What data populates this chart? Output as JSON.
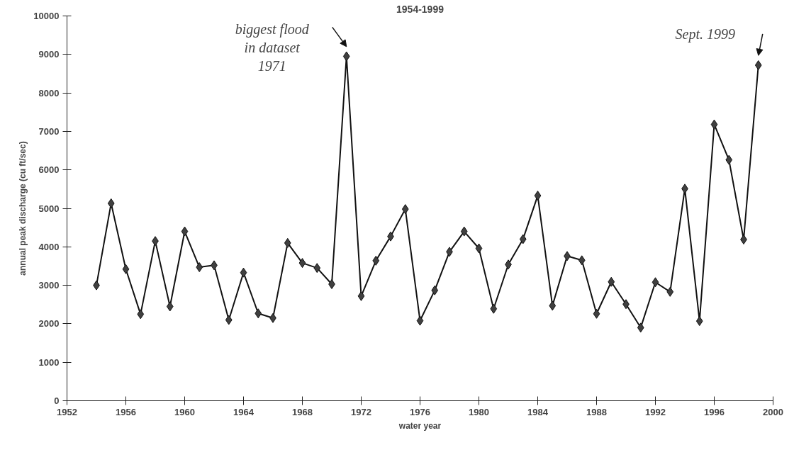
{
  "chart_data": {
    "type": "line",
    "title": "1954-1999",
    "xlabel": "water year",
    "ylabel": "annual peak discharge (cu ft/sec)",
    "x": [
      1954,
      1955,
      1956,
      1957,
      1958,
      1959,
      1960,
      1961,
      1962,
      1963,
      1964,
      1965,
      1966,
      1967,
      1968,
      1969,
      1970,
      1971,
      1972,
      1973,
      1974,
      1975,
      1976,
      1977,
      1978,
      1979,
      1980,
      1981,
      1982,
      1983,
      1984,
      1985,
      1986,
      1987,
      1988,
      1989,
      1990,
      1991,
      1992,
      1993,
      1994,
      1995,
      1996,
      1997,
      1998,
      1999
    ],
    "series": [
      {
        "color": "#404040",
        "values": [
          3000,
          5130,
          3420,
          2250,
          4150,
          2450,
          4400,
          3470,
          3520,
          2100,
          3330,
          2270,
          2150,
          4100,
          3580,
          3450,
          3030,
          8950,
          2720,
          3640,
          4270,
          4980,
          2080,
          2870,
          3870,
          4400,
          3960,
          2390,
          3540,
          4200,
          5330,
          2470,
          3760,
          3650,
          2260,
          3090,
          2510,
          1900,
          3080,
          2830,
          5510,
          2070,
          7180,
          6260,
          4190,
          8720
        ]
      }
    ],
    "xlim": [
      1952,
      2000
    ],
    "ylim": [
      0,
      10000
    ],
    "xticks": [
      1952,
      1956,
      1960,
      1964,
      1968,
      1972,
      1976,
      1980,
      1984,
      1988,
      1992,
      1996,
      2000
    ],
    "yticks": [
      0,
      1000,
      2000,
      3000,
      4000,
      5000,
      6000,
      7000,
      8000,
      9000,
      10000
    ],
    "grid": false,
    "marker": "diamond",
    "line_style": "solid",
    "annotations": [
      {
        "text": "biggest flood\nin dataset\n1971",
        "x": 1971,
        "y": 8950
      },
      {
        "text": "Sept. 1999",
        "x": 1999,
        "y": 8720
      }
    ]
  }
}
